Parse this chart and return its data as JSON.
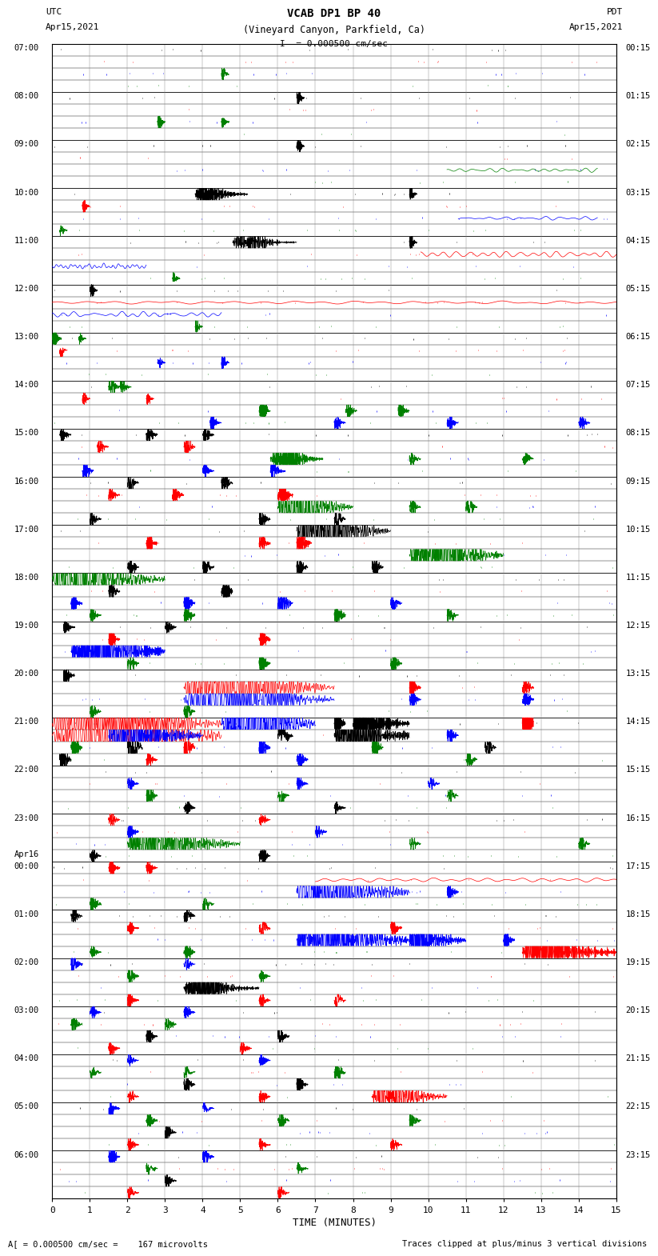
{
  "title_line1": "VCAB DP1 BP 40",
  "title_line2": "(Vineyard Canyon, Parkfield, Ca)",
  "scale_label": "I  = 0.000500 cm/sec",
  "left_label_top": "UTC",
  "left_label_date": "Apr15,2021",
  "right_label_top": "PDT",
  "right_label_date": "Apr15,2021",
  "bottom_label": "TIME (MINUTES)",
  "bottom_note_left": "= 0.000500 cm/sec =    167 microvolts",
  "bottom_note_right": "Traces clipped at plus/minus 3 vertical divisions",
  "utc_labels": [
    [
      "07:00",
      0
    ],
    [
      "08:00",
      4
    ],
    [
      "09:00",
      8
    ],
    [
      "10:00",
      12
    ],
    [
      "11:00",
      16
    ],
    [
      "12:00",
      20
    ],
    [
      "13:00",
      24
    ],
    [
      "14:00",
      28
    ],
    [
      "15:00",
      32
    ],
    [
      "16:00",
      36
    ],
    [
      "17:00",
      40
    ],
    [
      "18:00",
      44
    ],
    [
      "19:00",
      48
    ],
    [
      "20:00",
      52
    ],
    [
      "21:00",
      56
    ],
    [
      "22:00",
      60
    ],
    [
      "23:00",
      64
    ],
    [
      "Apr16",
      67
    ],
    [
      "00:00",
      68
    ],
    [
      "01:00",
      72
    ],
    [
      "02:00",
      76
    ],
    [
      "03:00",
      80
    ],
    [
      "04:00",
      84
    ],
    [
      "05:00",
      88
    ],
    [
      "06:00",
      92
    ]
  ],
  "pdt_labels": [
    [
      "00:15",
      0
    ],
    [
      "01:15",
      4
    ],
    [
      "02:15",
      8
    ],
    [
      "03:15",
      12
    ],
    [
      "04:15",
      16
    ],
    [
      "05:15",
      20
    ],
    [
      "06:15",
      24
    ],
    [
      "07:15",
      28
    ],
    [
      "08:15",
      32
    ],
    [
      "09:15",
      36
    ],
    [
      "10:15",
      40
    ],
    [
      "11:15",
      44
    ],
    [
      "12:15",
      48
    ],
    [
      "13:15",
      52
    ],
    [
      "14:15",
      56
    ],
    [
      "15:15",
      60
    ],
    [
      "16:15",
      64
    ],
    [
      "17:15",
      68
    ],
    [
      "18:15",
      72
    ],
    [
      "19:15",
      76
    ],
    [
      "20:15",
      80
    ],
    [
      "21:15",
      84
    ],
    [
      "22:15",
      88
    ],
    [
      "23:15",
      92
    ]
  ],
  "num_rows": 96,
  "x_min": 0,
  "x_max": 15,
  "colors": [
    "black",
    "red",
    "blue",
    "green"
  ],
  "background_color": "white"
}
